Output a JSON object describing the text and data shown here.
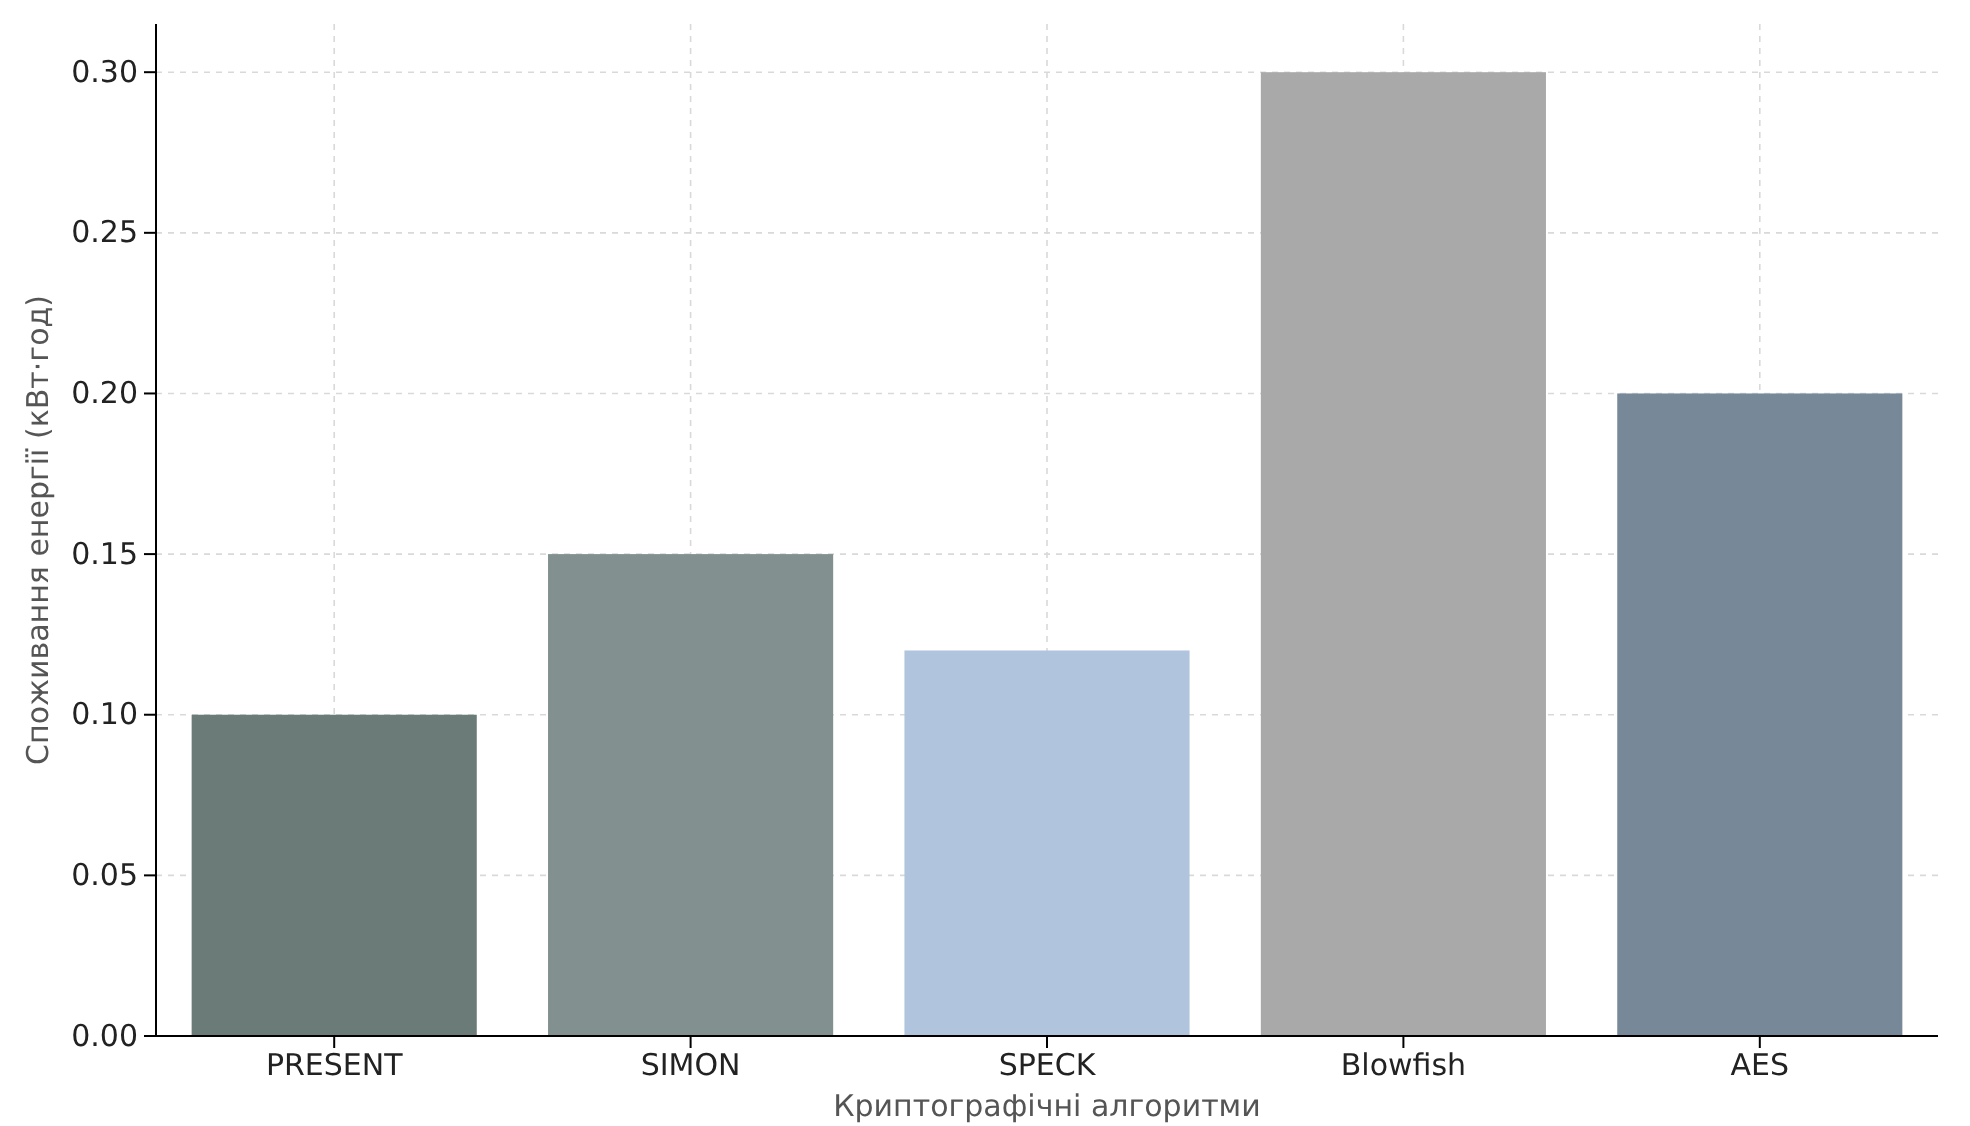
{
  "chart_data": {
    "type": "bar",
    "xlabel": "Криптографічні алгоритми",
    "ylabel": "Споживання енергії (кВт·год)",
    "categories": [
      "PRESENT",
      "SIMON",
      "SPECK",
      "Blowfish",
      "AES"
    ],
    "values": [
      0.1,
      0.15,
      0.12,
      0.3,
      0.2
    ],
    "colors": [
      "#6b7b78",
      "#829090",
      "#b0c4de",
      "#a9a9a9",
      "#778899"
    ],
    "ylim": [
      0,
      0.315
    ],
    "yticks": [
      {
        "value": 0,
        "label": "0.00"
      },
      {
        "value": 0.05,
        "label": "0.05"
      },
      {
        "value": 0.1,
        "label": "0.10"
      },
      {
        "value": 0.15,
        "label": "0.15"
      },
      {
        "value": 0.2,
        "label": "0.20"
      },
      {
        "value": 0.25,
        "label": "0.25"
      },
      {
        "value": 0.3,
        "label": "0.30"
      }
    ],
    "grid": true
  }
}
